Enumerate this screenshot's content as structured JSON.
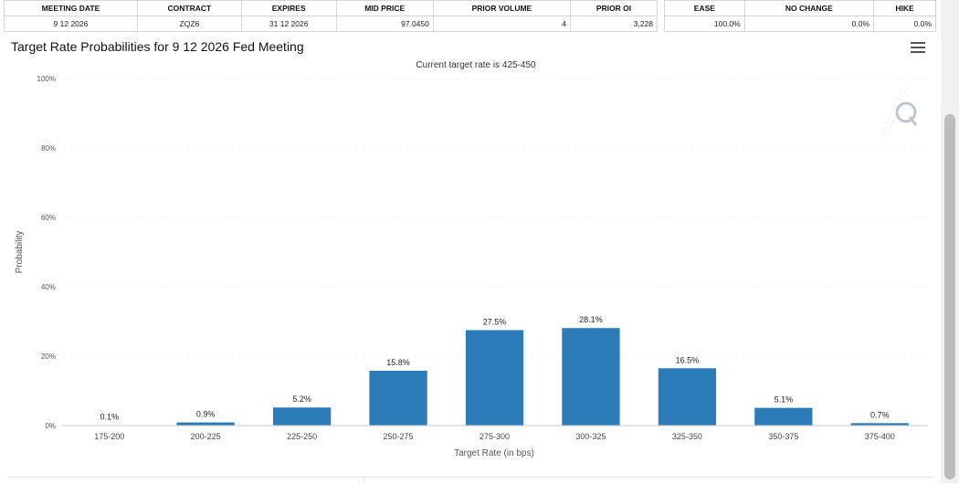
{
  "top_table_left": {
    "headers": [
      "MEETING DATE",
      "CONTRACT",
      "EXPIRES",
      "MID PRICE",
      "PRIOR VOLUME",
      "PRIOR OI"
    ],
    "row": [
      "9 12 2026",
      "ZQZ6",
      "31 12 2026",
      "97.0450",
      "4",
      "3,228"
    ]
  },
  "top_table_right": {
    "headers": [
      "EASE",
      "NO CHANGE",
      "HIKE"
    ],
    "row": [
      "100.0%",
      "0.0%",
      "0.0%"
    ]
  },
  "chart_data": {
    "type": "bar",
    "title": "Target Rate Probabilities for 9 12 2026 Fed Meeting",
    "subtitle": "Current target rate is 425-450",
    "xlabel": "Target Rate (in bps)",
    "ylabel": "Probability",
    "categories": [
      "175-200",
      "200-225",
      "225-250",
      "250-275",
      "275-300",
      "300-325",
      "325-350",
      "350-375",
      "375-400"
    ],
    "values": [
      0.1,
      0.9,
      5.2,
      15.8,
      27.5,
      28.1,
      16.5,
      5.1,
      0.7
    ],
    "data_labels": [
      "0.1%",
      "0.9%",
      "5.2%",
      "15.8%",
      "27.5%",
      "28.1%",
      "16.5%",
      "5.1%",
      "0.7%"
    ],
    "ylim": [
      0,
      100
    ],
    "yticks": [
      "0%",
      "20%",
      "40%",
      "60%",
      "80%",
      "100%"
    ],
    "ytick_values": [
      0,
      20,
      40,
      60,
      80,
      100
    ],
    "grid": true,
    "legend": false,
    "bar_color": "#2b7bb9"
  }
}
